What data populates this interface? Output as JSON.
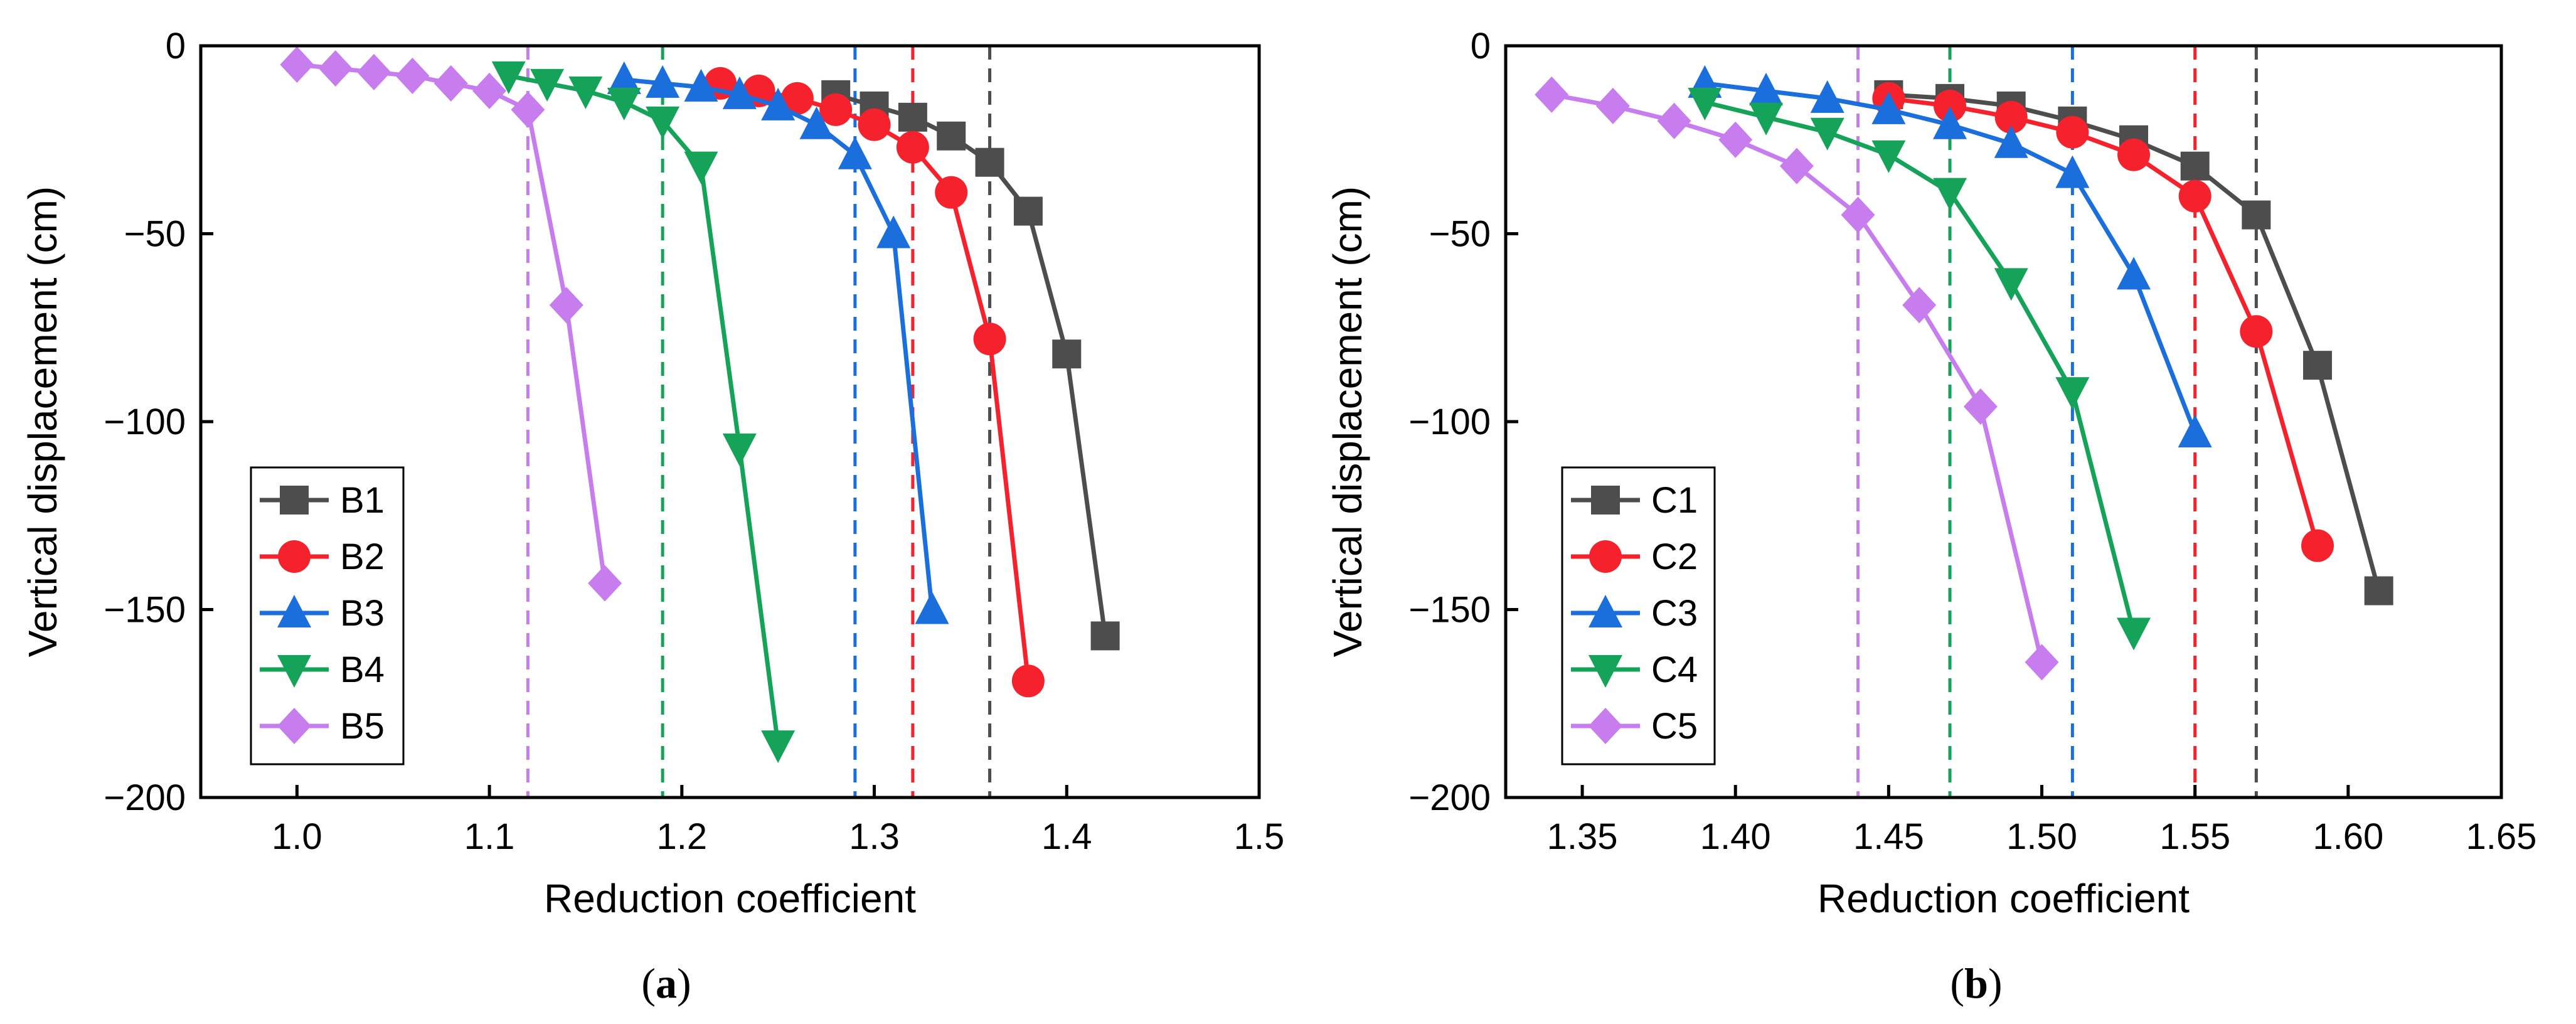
{
  "chart_data": [
    {
      "type": "line",
      "panel_label": "a",
      "title": "",
      "xlabel": "Reduction coefficient",
      "ylabel": "Vertical displacement (cm)",
      "xlim": [
        0.95,
        1.5
      ],
      "ylim": [
        -200,
        0
      ],
      "xticks": [
        1.0,
        1.1,
        1.2,
        1.3,
        1.4,
        1.5
      ],
      "xtick_labels": [
        "1.0",
        "1.1",
        "1.2",
        "1.3",
        "1.4",
        "1.5"
      ],
      "yticks": [
        0,
        -50,
        -100,
        -150,
        -200
      ],
      "ytick_labels": [
        "0",
        "−50",
        "−100",
        "−150",
        "−200"
      ],
      "legend_position": "bottom-left",
      "grid": false,
      "series": [
        {
          "name": "B1",
          "color": "#4d4d4d",
          "marker": "square",
          "x": [
            1.28,
            1.3,
            1.32,
            1.34,
            1.36,
            1.38,
            1.4,
            1.42
          ],
          "y": [
            -13,
            -16,
            -19,
            -24,
            -31,
            -44,
            -82,
            -157
          ]
        },
        {
          "name": "B2",
          "color": "#f5222d",
          "marker": "circle",
          "x": [
            1.22,
            1.24,
            1.26,
            1.28,
            1.3,
            1.32,
            1.34,
            1.36,
            1.38
          ],
          "y": [
            -10,
            -12,
            -14,
            -17,
            -21,
            -27,
            -39,
            -78,
            -169
          ]
        },
        {
          "name": "B3",
          "color": "#1a6fdc",
          "marker": "triangle-up",
          "x": [
            1.17,
            1.19,
            1.21,
            1.23,
            1.25,
            1.27,
            1.29,
            1.31,
            1.33
          ],
          "y": [
            -9,
            -10,
            -11,
            -13,
            -16,
            -21,
            -29,
            -50,
            -150
          ]
        },
        {
          "name": "B4",
          "color": "#15a35a",
          "marker": "triangle-down",
          "x": [
            1.11,
            1.13,
            1.15,
            1.17,
            1.19,
            1.21,
            1.23,
            1.25
          ],
          "y": [
            -8,
            -10,
            -12,
            -15,
            -20,
            -32,
            -107,
            -186
          ]
        },
        {
          "name": "B5",
          "color": "#c77dee",
          "marker": "diamond",
          "x": [
            1.0,
            1.02,
            1.04,
            1.06,
            1.08,
            1.1,
            1.12,
            1.14,
            1.16
          ],
          "y": [
            -5,
            -6,
            -7,
            -8,
            -10,
            -12,
            -17,
            -69,
            -143
          ]
        }
      ],
      "reference_lines": [
        {
          "x": 1.36,
          "color": "#4d4d4d"
        },
        {
          "x": 1.32,
          "color": "#f5222d"
        },
        {
          "x": 1.29,
          "color": "#1a6fdc"
        },
        {
          "x": 1.19,
          "color": "#15a35a"
        },
        {
          "x": 1.12,
          "color": "#c77dee"
        }
      ]
    },
    {
      "type": "line",
      "panel_label": "b",
      "title": "",
      "xlabel": "Reduction coefficient",
      "ylabel": "Vertical displacement (cm)",
      "xlim": [
        1.325,
        1.65
      ],
      "ylim": [
        -200,
        0
      ],
      "xticks": [
        1.35,
        1.4,
        1.45,
        1.5,
        1.55,
        1.6,
        1.65
      ],
      "xtick_labels": [
        "1.35",
        "1.40",
        "1.45",
        "1.50",
        "1.55",
        "1.60",
        "1.65"
      ],
      "yticks": [
        0,
        -50,
        -100,
        -150,
        -200
      ],
      "ytick_labels": [
        "0",
        "−50",
        "−100",
        "−150",
        "−200"
      ],
      "legend_position": "bottom-left",
      "grid": false,
      "series": [
        {
          "name": "C1",
          "color": "#4d4d4d",
          "marker": "square",
          "x": [
            1.45,
            1.47,
            1.49,
            1.51,
            1.53,
            1.55,
            1.57,
            1.59,
            1.61
          ],
          "y": [
            -13,
            -14,
            -16,
            -20,
            -25,
            -32,
            -45,
            -85,
            -145
          ]
        },
        {
          "name": "C2",
          "color": "#f5222d",
          "marker": "circle",
          "x": [
            1.45,
            1.47,
            1.49,
            1.51,
            1.53,
            1.55,
            1.57,
            1.59
          ],
          "y": [
            -14,
            -16,
            -19,
            -23,
            -29,
            -40,
            -76,
            -133
          ]
        },
        {
          "name": "C3",
          "color": "#1a6fdc",
          "marker": "triangle-up",
          "x": [
            1.39,
            1.41,
            1.43,
            1.45,
            1.47,
            1.49,
            1.51,
            1.53,
            1.55
          ],
          "y": [
            -10,
            -12,
            -14,
            -17,
            -21,
            -26,
            -34,
            -61,
            -103
          ]
        },
        {
          "name": "C4",
          "color": "#15a35a",
          "marker": "triangle-down",
          "x": [
            1.39,
            1.41,
            1.43,
            1.45,
            1.47,
            1.49,
            1.51,
            1.53
          ],
          "y": [
            -15,
            -19,
            -23,
            -29,
            -39,
            -63,
            -92,
            -156
          ]
        },
        {
          "name": "C5",
          "color": "#c77dee",
          "marker": "diamond",
          "x": [
            1.34,
            1.36,
            1.38,
            1.4,
            1.42,
            1.44,
            1.46,
            1.48,
            1.5
          ],
          "y": [
            -13,
            -16,
            -20,
            -25,
            -32,
            -45,
            -69,
            -96,
            -164
          ]
        }
      ],
      "reference_lines": [
        {
          "x": 1.57,
          "color": "#4d4d4d"
        },
        {
          "x": 1.55,
          "color": "#f5222d"
        },
        {
          "x": 1.51,
          "color": "#1a6fdc"
        },
        {
          "x": 1.47,
          "color": "#15a35a"
        },
        {
          "x": 1.44,
          "color": "#c77dee"
        }
      ]
    }
  ]
}
